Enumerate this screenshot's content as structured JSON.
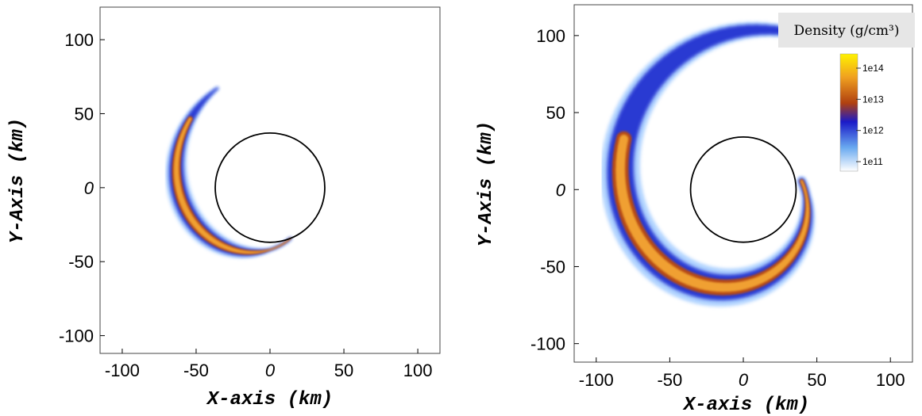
{
  "chart_data": [
    {
      "type": "heatmap",
      "panel": "left",
      "xlabel": "X-axis (km)",
      "ylabel": "Y-Axis (km)",
      "xlim": [
        -115,
        115
      ],
      "ylim": [
        -112,
        122
      ],
      "xticks": [
        -100,
        -50,
        0,
        50,
        100
      ],
      "yticks": [
        -100,
        -50,
        0,
        50,
        100
      ],
      "xtick_labels": [
        "-100",
        "-50",
        "0",
        "50",
        "100"
      ],
      "ytick_labels": [
        "-100",
        "-50",
        "0",
        "50",
        "100"
      ],
      "black_hole_circle": {
        "center": [
          0,
          0
        ],
        "radius": 37
      },
      "density_spiral": {
        "outer_radius_start_km": 76,
        "outer_radius_end_km": 37,
        "start_angle_deg": 118,
        "end_angle_deg": 292
      }
    },
    {
      "type": "heatmap",
      "panel": "right",
      "xlabel": "X-axis (km)",
      "ylabel": "Y-Axis (km)",
      "xlim": [
        -115,
        115
      ],
      "ylim": [
        -112,
        120
      ],
      "xticks": [
        -100,
        -50,
        0,
        50,
        100
      ],
      "yticks": [
        -100,
        -50,
        0,
        50,
        100
      ],
      "xtick_labels": [
        "-100",
        "-50",
        "0",
        "50",
        "100"
      ],
      "ytick_labels": [
        "-100",
        "-50",
        "0",
        "50",
        "100"
      ],
      "black_hole_circle": {
        "center": [
          0,
          0
        ],
        "radius": 35
      },
      "density_spiral": {
        "outer_radius_start_km": 108,
        "outer_radius_end_km": 40,
        "start_angle_deg": 68,
        "end_angle_deg": 368
      },
      "colorbar": {
        "title": "Density (g/cm³)",
        "labels": [
          "1e14",
          "1e13",
          "1e12",
          "1e11"
        ],
        "colors": [
          "#ffee00",
          "#e88a10",
          "#b54a15",
          "#1525c8",
          "#8fc8ff",
          "#ffffff"
        ]
      }
    }
  ]
}
